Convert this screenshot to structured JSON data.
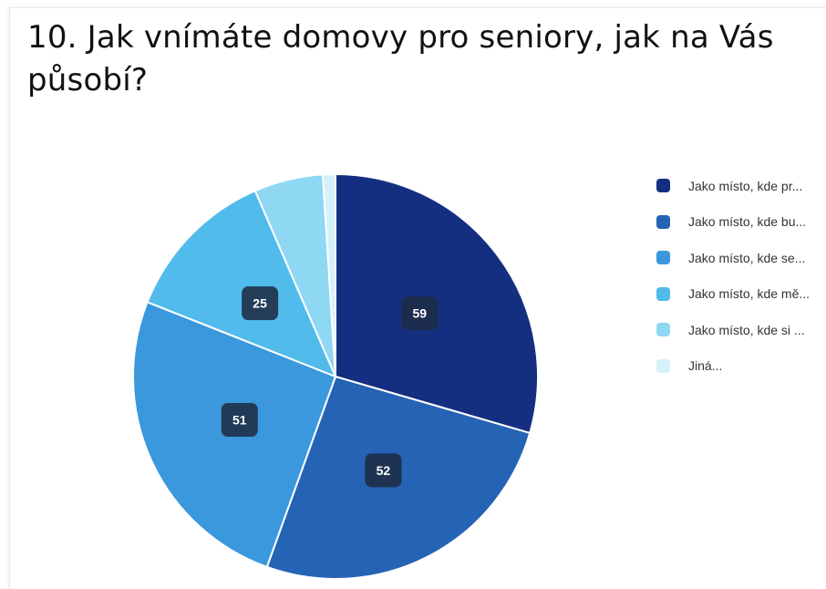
{
  "chart_data": {
    "type": "pie",
    "title": "10. Jak vnímáte domovy pro seniory, jak na Vás působí?",
    "legend_position": "right",
    "categories": [
      "Jako místo, kde pr...",
      "Jako místo, kde bu...",
      "Jako místo, kde se...",
      "Jako místo, kde mě...",
      "Jako místo, kde si ...",
      "Jiná..."
    ],
    "values": [
      59,
      52,
      51,
      25,
      11,
      2
    ],
    "data_labels": [
      "59",
      "52",
      "51",
      "25",
      "",
      ""
    ],
    "colors": [
      "#142f80",
      "#2563b5",
      "#3b98dc",
      "#51bcec",
      "#8fd8f3",
      "#d4f1fb"
    ],
    "label_box_color": "#1e2c44"
  }
}
